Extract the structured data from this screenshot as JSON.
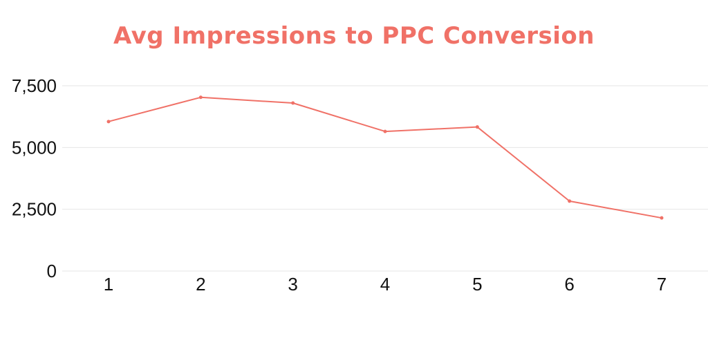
{
  "colors": {
    "accent": "#f07167",
    "grid": "#e6e6e6",
    "text": "#111111",
    "background": "#ffffff"
  },
  "chart_data": {
    "type": "line",
    "title": "Avg Impressions to PPC Conversion",
    "xlabel": "",
    "ylabel": "",
    "x": [
      "1",
      "2",
      "3",
      "4",
      "5",
      "6",
      "7"
    ],
    "series": [
      {
        "values": [
          6050,
          7030,
          6800,
          5650,
          5830,
          2830,
          2150
        ]
      }
    ],
    "y_ticks": [
      "0",
      "2,500",
      "5,000",
      "7,500"
    ],
    "y_tick_values": [
      0,
      2500,
      5000,
      7500
    ],
    "ylim": [
      0,
      7500
    ],
    "grid": true,
    "legend": "none"
  }
}
